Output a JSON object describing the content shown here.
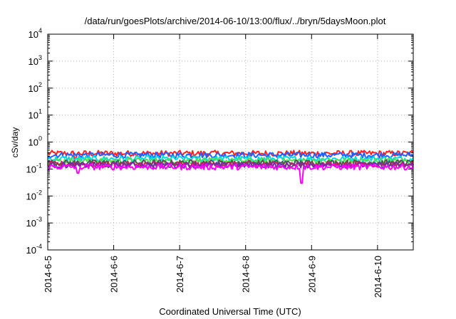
{
  "chart_data": {
    "type": "line",
    "title": "/data/run/goesPlots/archive/2014-06-10/13:00/flux/../bryn/5daysMoon.plot",
    "xlabel": "Coordinated Universal Time (UTC)",
    "ylabel": "cSv/day",
    "yscale": "log",
    "ylim": [
      0.0001,
      10000
    ],
    "xlim": [
      "2014-06-05 00:00",
      "2014-06-10 13:00"
    ],
    "grid": true,
    "xticks": [
      {
        "value": "2014-06-05",
        "label": "2014-6-5"
      },
      {
        "value": "2014-06-06",
        "label": "2014-6-6"
      },
      {
        "value": "2014-06-07",
        "label": "2014-6-7"
      },
      {
        "value": "2014-06-08",
        "label": "2014-6-8"
      },
      {
        "value": "2014-06-09",
        "label": "2014-6-9"
      },
      {
        "value": "2014-06-10",
        "label": "2014-6-10"
      }
    ],
    "yticks": [
      {
        "value": 0.0001,
        "base": "10",
        "exp": "-4"
      },
      {
        "value": 0.001,
        "base": "10",
        "exp": "-3"
      },
      {
        "value": 0.01,
        "base": "10",
        "exp": "-2"
      },
      {
        "value": 0.1,
        "base": "10",
        "exp": "-1"
      },
      {
        "value": 1,
        "base": "10",
        "exp": "0"
      },
      {
        "value": 10,
        "base": "10",
        "exp": "1"
      },
      {
        "value": 100,
        "base": "10",
        "exp": "2"
      },
      {
        "value": 1000,
        "base": "10",
        "exp": "3"
      },
      {
        "value": 10000,
        "base": "10",
        "exp": "4"
      }
    ],
    "series": [
      {
        "color": "#ff2020",
        "level": 0.38,
        "dips": [
          {
            "x": "2014-06-05 10:00",
            "value": 0.25
          }
        ]
      },
      {
        "color": "#2060ff",
        "level": 0.33,
        "dips": []
      },
      {
        "color": "#00dddd",
        "level": 0.24,
        "dips": []
      },
      {
        "color": "#50e050",
        "level": 0.2,
        "dips": []
      },
      {
        "color": "#555555",
        "level": 0.17,
        "dips": []
      },
      {
        "color": "#c02060",
        "level": 0.15,
        "dips": []
      },
      {
        "color": "#7030a0",
        "level": 0.14,
        "dips": []
      },
      {
        "color": "#ff00ff",
        "level": 0.12,
        "dips": [
          {
            "x": "2014-06-05 11:00",
            "value": 0.07
          },
          {
            "x": "2014-06-08 20:30",
            "value": 0.03
          }
        ]
      }
    ]
  }
}
